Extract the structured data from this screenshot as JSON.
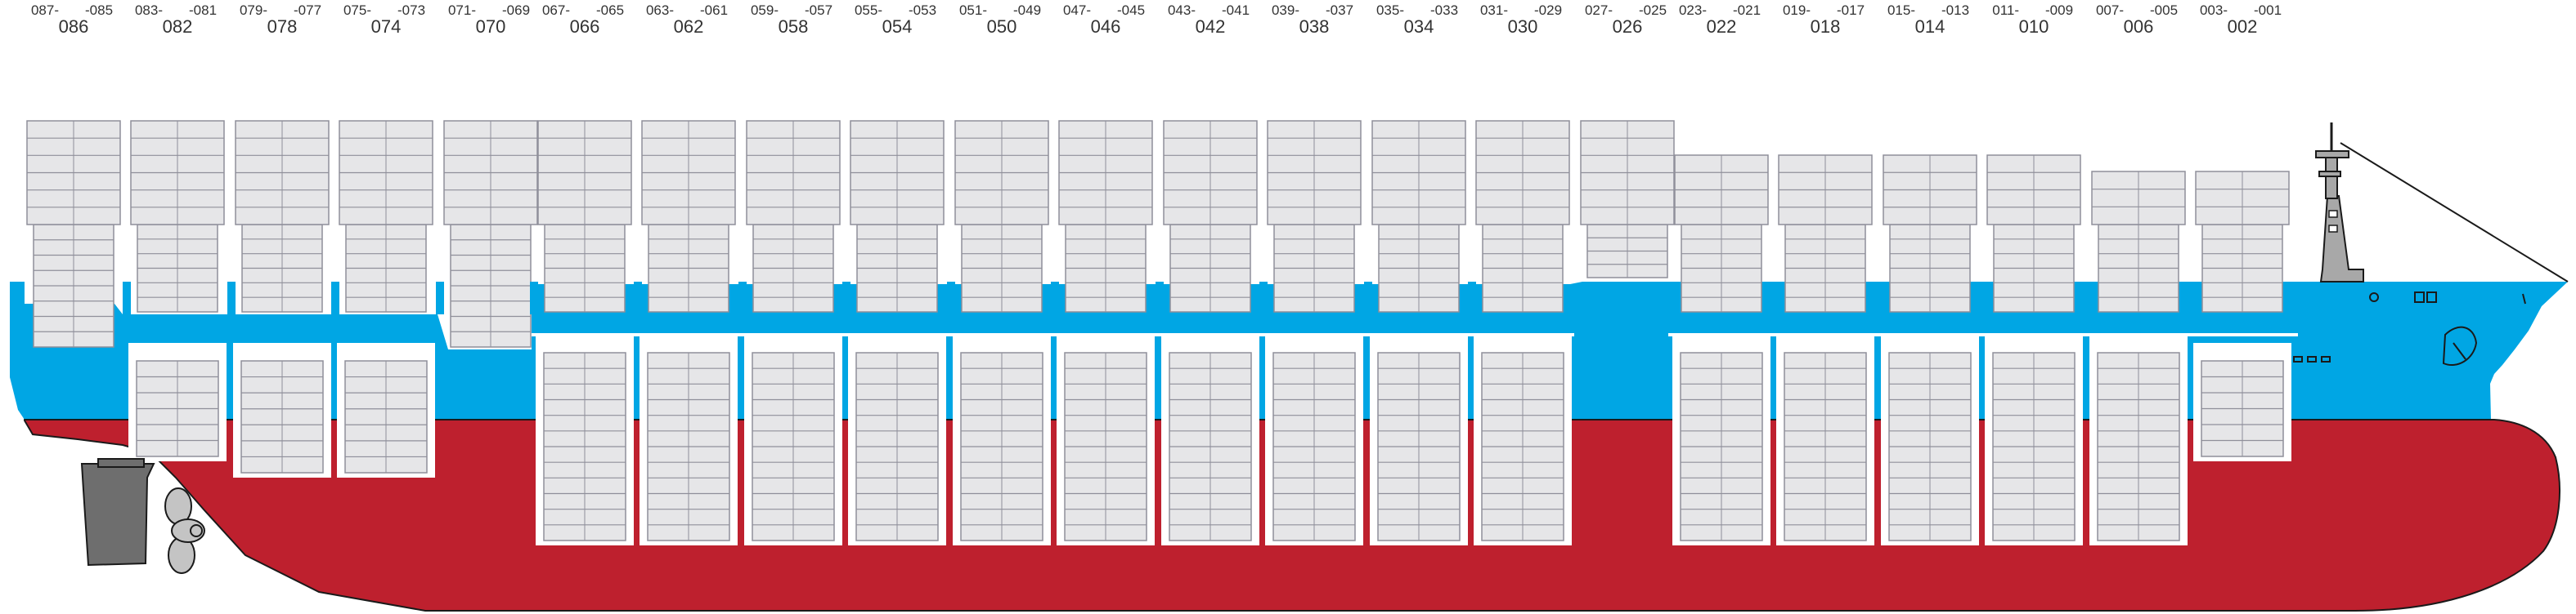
{
  "colors": {
    "hull_red": "#be202e",
    "hull_blue": "#00a6e4",
    "container_fill": "#e6e6e8",
    "container_line": "#8f8f9a",
    "hold_white": "#ffffff",
    "keel_dark": "#1a1a1a",
    "rudder": "#6e6e6e",
    "prop": "#c4c4c4",
    "superstructure": "#a8a8a8"
  },
  "bays": [
    {
      "big": "086",
      "left": "087-",
      "right": "-085"
    },
    {
      "big": "082",
      "left": "083-",
      "right": "-081"
    },
    {
      "big": "078",
      "left": "079-",
      "right": "-077"
    },
    {
      "big": "074",
      "left": "075-",
      "right": "-073"
    },
    {
      "big": "070",
      "left": "071-",
      "right": "-069"
    },
    {
      "big": "066",
      "left": "067-",
      "right": "-065"
    },
    {
      "big": "062",
      "left": "063-",
      "right": "-061"
    },
    {
      "big": "058",
      "left": "059-",
      "right": "-057"
    },
    {
      "big": "054",
      "left": "055-",
      "right": "-053"
    },
    {
      "big": "050",
      "left": "051-",
      "right": "-049"
    },
    {
      "big": "046",
      "left": "047-",
      "right": "-045"
    },
    {
      "big": "042",
      "left": "043-",
      "right": "-041"
    },
    {
      "big": "038",
      "left": "039-",
      "right": "-037"
    },
    {
      "big": "034",
      "left": "035-",
      "right": "-033"
    },
    {
      "big": "030",
      "left": "031-",
      "right": "-029"
    },
    {
      "big": "026",
      "left": "027-",
      "right": "-025"
    },
    {
      "big": "022",
      "left": "023-",
      "right": "-021"
    },
    {
      "big": "018",
      "left": "019-",
      "right": "-017"
    },
    {
      "big": "014",
      "left": "015-",
      "right": "-013"
    },
    {
      "big": "010",
      "left": "011-",
      "right": "-009"
    },
    {
      "big": "006",
      "left": "007-",
      "right": "-005"
    },
    {
      "big": "002",
      "left": "003-",
      "right": "-001"
    }
  ]
}
